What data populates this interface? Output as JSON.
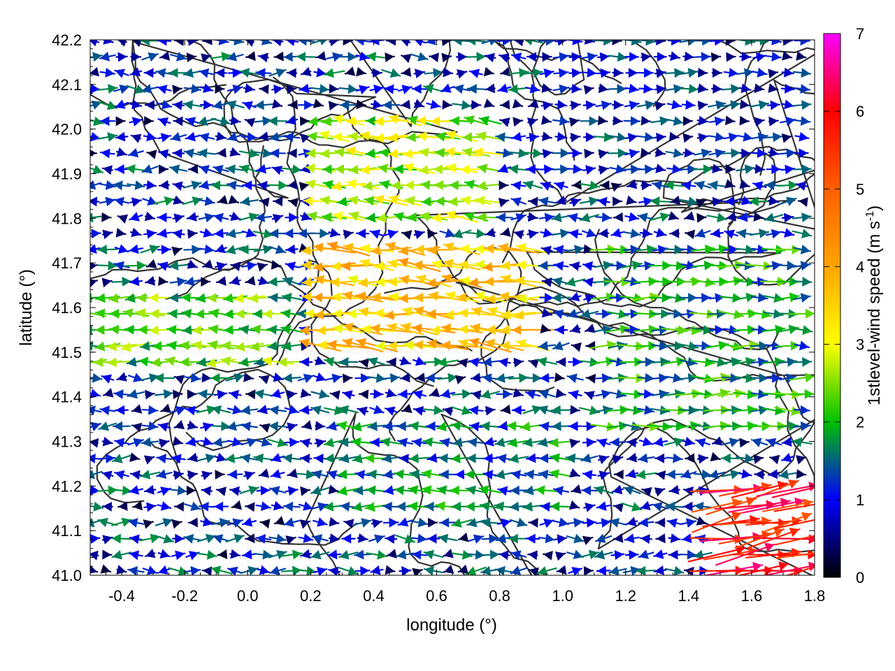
{
  "chart_data": {
    "type": "vector-field",
    "title": "",
    "xlabel": "longitude (°)",
    "ylabel": "latitude (°)",
    "xlim": [
      -0.5,
      1.8
    ],
    "ylim": [
      41.0,
      42.2
    ],
    "xticks": [
      -0.4,
      -0.2,
      0.0,
      0.2,
      0.4,
      0.6,
      0.8,
      1.0,
      1.2,
      1.4,
      1.6,
      1.8
    ],
    "xtick_labels": [
      "-0.4",
      "-0.2",
      "0.0",
      "0.2",
      "0.4",
      "0.6",
      "0.8",
      "1.0",
      "1.2",
      "1.4",
      "1.6",
      "1.8"
    ],
    "yticks": [
      41.0,
      41.1,
      41.2,
      41.3,
      41.4,
      41.5,
      41.6,
      41.7,
      41.8,
      41.9,
      42.0,
      42.1,
      42.2
    ],
    "ytick_labels": [
      "41.0",
      "41.1",
      "41.2",
      "41.3",
      "41.4",
      "41.5",
      "41.6",
      "41.7",
      "41.8",
      "41.9",
      "42.0",
      "42.1",
      "42.2"
    ],
    "grid": true,
    "colorbar": {
      "label_prefix": "1stlevel-wind speed (m s",
      "label_sup": "-1",
      "label_suffix": ")",
      "range": [
        0,
        7
      ],
      "ticks": [
        0,
        1,
        2,
        3,
        4,
        5,
        6,
        7
      ],
      "tick_labels": [
        "0",
        "1",
        "2",
        "3",
        "4",
        "5",
        "6",
        "7"
      ],
      "colormap": [
        {
          "value": 0.0,
          "color": "#000000"
        },
        {
          "value": 1.0,
          "color": "#0000ff"
        },
        {
          "value": 2.0,
          "color": "#00c000"
        },
        {
          "value": 3.0,
          "color": "#ffff00"
        },
        {
          "value": 4.0,
          "color": "#ffa500"
        },
        {
          "value": 5.0,
          "color": "#ff6000"
        },
        {
          "value": 6.0,
          "color": "#ff0000"
        },
        {
          "value": 7.0,
          "color": "#ff00ff"
        }
      ]
    },
    "vectors": {
      "grid_dlon": 0.045,
      "grid_dlat": 0.036,
      "speed_range": [
        0,
        7
      ],
      "regions": [
        {
          "name": "west-strip",
          "lon": [
            -0.5,
            0.15
          ],
          "lat": [
            41.45,
            41.65
          ],
          "direction_deg": 180,
          "speed": 2.2
        },
        {
          "name": "central-band",
          "lon": [
            0.2,
            0.95
          ],
          "lat": [
            41.5,
            41.75
          ],
          "direction_deg": 175,
          "speed": 3.6
        },
        {
          "name": "north-band",
          "lon": [
            0.2,
            0.8
          ],
          "lat": [
            41.8,
            42.05
          ],
          "direction_deg": 175,
          "speed": 2.6
        },
        {
          "name": "east-flow",
          "lon": [
            1.1,
            1.8
          ],
          "lat": [
            41.3,
            41.75
          ],
          "direction_deg": 0,
          "speed": 1.8
        },
        {
          "name": "southeast-jet",
          "lon": [
            1.45,
            1.8
          ],
          "lat": [
            41.0,
            41.2
          ],
          "direction_deg": 10,
          "speed": 5.8
        },
        {
          "name": "south-center",
          "lon": [
            0.3,
            1.0
          ],
          "lat": [
            41.15,
            41.35
          ],
          "direction_deg": 180,
          "speed": 1.5
        },
        {
          "name": "north-east",
          "lon": [
            0.95,
            1.8
          ],
          "lat": [
            41.9,
            42.2
          ],
          "direction_deg": 0,
          "speed": 1.0
        }
      ]
    },
    "contours": {
      "description_values": [],
      "color": "#333333"
    }
  }
}
